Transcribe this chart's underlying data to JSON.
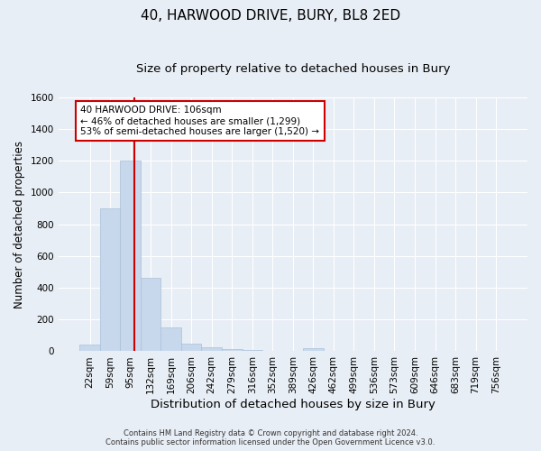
{
  "title": "40, HARWOOD DRIVE, BURY, BL8 2ED",
  "subtitle": "Size of property relative to detached houses in Bury",
  "xlabel": "Distribution of detached houses by size in Bury",
  "ylabel": "Number of detached properties",
  "categories": [
    "22sqm",
    "59sqm",
    "95sqm",
    "132sqm",
    "169sqm",
    "206sqm",
    "242sqm",
    "279sqm",
    "316sqm",
    "352sqm",
    "389sqm",
    "426sqm",
    "462sqm",
    "499sqm",
    "536sqm",
    "573sqm",
    "609sqm",
    "646sqm",
    "683sqm",
    "719sqm",
    "756sqm"
  ],
  "bar_values": [
    40,
    900,
    1200,
    465,
    150,
    50,
    25,
    15,
    10,
    0,
    0,
    20,
    0,
    0,
    0,
    0,
    0,
    0,
    0,
    0,
    0
  ],
  "bar_color": "#c8d8ec",
  "bar_edgecolor": "#a8c0d8",
  "ylim": [
    0,
    1600
  ],
  "yticks": [
    0,
    200,
    400,
    600,
    800,
    1000,
    1200,
    1400,
    1600
  ],
  "vline_x_index": 2,
  "vline_color": "#cc0000",
  "annotation_text": "40 HARWOOD DRIVE: 106sqm\n← 46% of detached houses are smaller (1,299)\n53% of semi-detached houses are larger (1,520) →",
  "annotation_box_color": "#ffffff",
  "annotation_box_edgecolor": "#cc0000",
  "footer_line1": "Contains HM Land Registry data © Crown copyright and database right 2024.",
  "footer_line2": "Contains public sector information licensed under the Open Government Licence v3.0.",
  "background_color": "#e8eef5",
  "grid_color": "#ffffff",
  "title_fontsize": 11,
  "subtitle_fontsize": 9.5,
  "axis_label_fontsize": 8.5,
  "tick_fontsize": 7.5,
  "footer_fontsize": 6
}
